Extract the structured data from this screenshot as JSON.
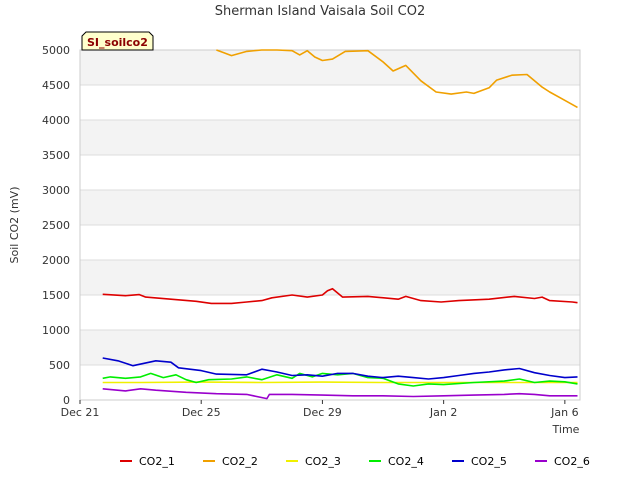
{
  "chart_data": {
    "type": "line",
    "title": "Sherman Island Vaisala Soil CO2",
    "tag": "SI_soilco2",
    "xlabel": "Time",
    "ylabel": "Soil CO2 (mV)",
    "xlim": [
      "2016-12-21",
      "2017-01-06T12:00"
    ],
    "ylim": [
      0,
      5000
    ],
    "x_ticks": [
      {
        "label": "Dec 21",
        "date": "2016-12-21"
      },
      {
        "label": "Dec 25",
        "date": "2016-12-25"
      },
      {
        "label": "Dec 29",
        "date": "2016-12-29"
      },
      {
        "label": "Jan 2",
        "date": "2017-01-02"
      },
      {
        "label": "Jan 6",
        "date": "2017-01-06"
      }
    ],
    "y_ticks": [
      0,
      500,
      1000,
      1500,
      2000,
      2500,
      3000,
      3500,
      4000,
      4500,
      5000
    ],
    "grid": true,
    "legend_position": "bottom",
    "series": [
      {
        "name": "CO2_1",
        "color": "#dd0000",
        "points": [
          [
            "2016-12-21T18:00",
            1510
          ],
          [
            "2016-12-22T12:00",
            1490
          ],
          [
            "2016-12-22T23:00",
            1505
          ],
          [
            "2016-12-23T04:00",
            1470
          ],
          [
            "2016-12-24T00:00",
            1440
          ],
          [
            "2016-12-24T20:00",
            1410
          ],
          [
            "2016-12-25T08:00",
            1380
          ],
          [
            "2016-12-26T00:00",
            1380
          ],
          [
            "2016-12-26T12:00",
            1400
          ],
          [
            "2016-12-27T00:00",
            1420
          ],
          [
            "2016-12-27T08:00",
            1460
          ],
          [
            "2016-12-28T00:00",
            1500
          ],
          [
            "2016-12-28T12:00",
            1470
          ],
          [
            "2016-12-29T00:00",
            1500
          ],
          [
            "2016-12-29T04:00",
            1560
          ],
          [
            "2016-12-29T08:00",
            1590
          ],
          [
            "2016-12-29T16:00",
            1470
          ],
          [
            "2016-12-30T12:00",
            1480
          ],
          [
            "2016-12-31T12:00",
            1440
          ],
          [
            "2016-12-31T18:00",
            1480
          ],
          [
            "2017-01-01T06:00",
            1420
          ],
          [
            "2017-01-01T22:00",
            1400
          ],
          [
            "2017-01-02T12:00",
            1420
          ],
          [
            "2017-01-03T12:00",
            1440
          ],
          [
            "2017-01-04T08:00",
            1480
          ],
          [
            "2017-01-05T00:00",
            1450
          ],
          [
            "2017-01-05T06:00",
            1470
          ],
          [
            "2017-01-05T12:00",
            1420
          ],
          [
            "2017-01-06T06:00",
            1400
          ],
          [
            "2017-01-06T10:00",
            1390
          ]
        ]
      },
      {
        "name": "CO2_2",
        "color": "#f0a000",
        "points": [
          [
            "2016-12-25T12:00",
            5000
          ],
          [
            "2016-12-25T18:00",
            4960
          ],
          [
            "2016-12-26T00:00",
            4920
          ],
          [
            "2016-12-26T12:00",
            4980
          ],
          [
            "2016-12-27T00:00",
            5000
          ],
          [
            "2016-12-27T12:00",
            5000
          ],
          [
            "2016-12-28T00:00",
            4990
          ],
          [
            "2016-12-28T06:00",
            4930
          ],
          [
            "2016-12-28T12:00",
            4990
          ],
          [
            "2016-12-28T18:00",
            4900
          ],
          [
            "2016-12-29T00:00",
            4850
          ],
          [
            "2016-12-29T08:00",
            4870
          ],
          [
            "2016-12-29T18:00",
            4980
          ],
          [
            "2016-12-30T12:00",
            4990
          ],
          [
            "2016-12-31T00:00",
            4830
          ],
          [
            "2016-12-31T08:00",
            4700
          ],
          [
            "2016-12-31T18:00",
            4780
          ],
          [
            "2017-01-01T06:00",
            4560
          ],
          [
            "2017-01-01T18:00",
            4400
          ],
          [
            "2017-01-02T06:00",
            4370
          ],
          [
            "2017-01-02T18:00",
            4400
          ],
          [
            "2017-01-03T00:00",
            4380
          ],
          [
            "2017-01-03T12:00",
            4460
          ],
          [
            "2017-01-03T18:00",
            4570
          ],
          [
            "2017-01-04T06:00",
            4640
          ],
          [
            "2017-01-04T18:00",
            4650
          ],
          [
            "2017-01-05T00:00",
            4560
          ],
          [
            "2017-01-05T06:00",
            4470
          ],
          [
            "2017-01-05T12:00",
            4400
          ],
          [
            "2017-01-05T20:00",
            4320
          ],
          [
            "2017-01-06T04:00",
            4240
          ],
          [
            "2017-01-06T10:00",
            4180
          ]
        ]
      },
      {
        "name": "CO2_3",
        "color": "#f0f000",
        "points": [
          [
            "2016-12-21T18:00",
            250
          ],
          [
            "2016-12-23T00:00",
            250
          ],
          [
            "2016-12-25T00:00",
            255
          ],
          [
            "2016-12-27T00:00",
            250
          ],
          [
            "2016-12-29T00:00",
            255
          ],
          [
            "2016-12-31T00:00",
            250
          ],
          [
            "2017-01-02T00:00",
            250
          ],
          [
            "2017-01-04T00:00",
            250
          ],
          [
            "2017-01-06T10:00",
            250
          ]
        ]
      },
      {
        "name": "CO2_4",
        "color": "#00ee00",
        "points": [
          [
            "2016-12-21T18:00",
            310
          ],
          [
            "2016-12-22T00:00",
            330
          ],
          [
            "2016-12-22T12:00",
            310
          ],
          [
            "2016-12-23T00:00",
            330
          ],
          [
            "2016-12-23T08:00",
            380
          ],
          [
            "2016-12-23T18:00",
            320
          ],
          [
            "2016-12-24T04:00",
            360
          ],
          [
            "2016-12-24T12:00",
            290
          ],
          [
            "2016-12-24T20:00",
            250
          ],
          [
            "2016-12-25T06:00",
            290
          ],
          [
            "2016-12-26T00:00",
            300
          ],
          [
            "2016-12-26T12:00",
            330
          ],
          [
            "2016-12-27T00:00",
            290
          ],
          [
            "2016-12-27T12:00",
            360
          ],
          [
            "2016-12-28T00:00",
            310
          ],
          [
            "2016-12-28T06:00",
            380
          ],
          [
            "2016-12-28T16:00",
            330
          ],
          [
            "2016-12-29T00:00",
            380
          ],
          [
            "2016-12-29T12:00",
            360
          ],
          [
            "2016-12-30T00:00",
            380
          ],
          [
            "2016-12-30T12:00",
            320
          ],
          [
            "2016-12-31T00:00",
            310
          ],
          [
            "2016-12-31T12:00",
            230
          ],
          [
            "2017-01-01T00:00",
            200
          ],
          [
            "2017-01-01T12:00",
            230
          ],
          [
            "2017-01-02T00:00",
            220
          ],
          [
            "2017-01-03T00:00",
            250
          ],
          [
            "2017-01-04T00:00",
            270
          ],
          [
            "2017-01-04T12:00",
            300
          ],
          [
            "2017-01-05T00:00",
            250
          ],
          [
            "2017-01-05T12:00",
            270
          ],
          [
            "2017-01-06T00:00",
            260
          ],
          [
            "2017-01-06T10:00",
            230
          ]
        ]
      },
      {
        "name": "CO2_5",
        "color": "#0000cc",
        "points": [
          [
            "2016-12-21T18:00",
            600
          ],
          [
            "2016-12-22T06:00",
            560
          ],
          [
            "2016-12-22T18:00",
            490
          ],
          [
            "2016-12-23T12:00",
            560
          ],
          [
            "2016-12-24T00:00",
            540
          ],
          [
            "2016-12-24T06:00",
            460
          ],
          [
            "2016-12-25T00:00",
            420
          ],
          [
            "2016-12-25T12:00",
            370
          ],
          [
            "2016-12-26T12:00",
            360
          ],
          [
            "2016-12-27T00:00",
            440
          ],
          [
            "2016-12-27T12:00",
            400
          ],
          [
            "2016-12-28T00:00",
            350
          ],
          [
            "2016-12-28T12:00",
            360
          ],
          [
            "2016-12-29T00:00",
            340
          ],
          [
            "2016-12-29T12:00",
            380
          ],
          [
            "2016-12-30T00:00",
            380
          ],
          [
            "2016-12-30T12:00",
            340
          ],
          [
            "2016-12-31T00:00",
            320
          ],
          [
            "2016-12-31T12:00",
            340
          ],
          [
            "2017-01-01T00:00",
            320
          ],
          [
            "2017-01-01T12:00",
            300
          ],
          [
            "2017-01-02T00:00",
            320
          ],
          [
            "2017-01-02T12:00",
            350
          ],
          [
            "2017-01-03T00:00",
            380
          ],
          [
            "2017-01-03T12:00",
            400
          ],
          [
            "2017-01-04T00:00",
            430
          ],
          [
            "2017-01-04T12:00",
            450
          ],
          [
            "2017-01-05T00:00",
            390
          ],
          [
            "2017-01-05T12:00",
            350
          ],
          [
            "2017-01-06T00:00",
            320
          ],
          [
            "2017-01-06T10:00",
            330
          ]
        ]
      },
      {
        "name": "CO2_6",
        "color": "#9900cc",
        "points": [
          [
            "2016-12-21T18:00",
            160
          ],
          [
            "2016-12-22T12:00",
            130
          ],
          [
            "2016-12-23T00:00",
            160
          ],
          [
            "2016-12-23T12:00",
            140
          ],
          [
            "2016-12-24T12:00",
            110
          ],
          [
            "2016-12-25T12:00",
            90
          ],
          [
            "2016-12-26T12:00",
            80
          ],
          [
            "2016-12-27T04:00",
            20
          ],
          [
            "2016-12-27T06:00",
            80
          ],
          [
            "2016-12-28T00:00",
            80
          ],
          [
            "2016-12-29T00:00",
            70
          ],
          [
            "2016-12-30T00:00",
            60
          ],
          [
            "2016-12-31T00:00",
            60
          ],
          [
            "2017-01-01T00:00",
            50
          ],
          [
            "2017-01-02T00:00",
            60
          ],
          [
            "2017-01-03T00:00",
            70
          ],
          [
            "2017-01-04T00:00",
            80
          ],
          [
            "2017-01-04T12:00",
            90
          ],
          [
            "2017-01-05T00:00",
            80
          ],
          [
            "2017-01-05T12:00",
            60
          ],
          [
            "2017-01-06T10:00",
            60
          ]
        ]
      }
    ]
  }
}
